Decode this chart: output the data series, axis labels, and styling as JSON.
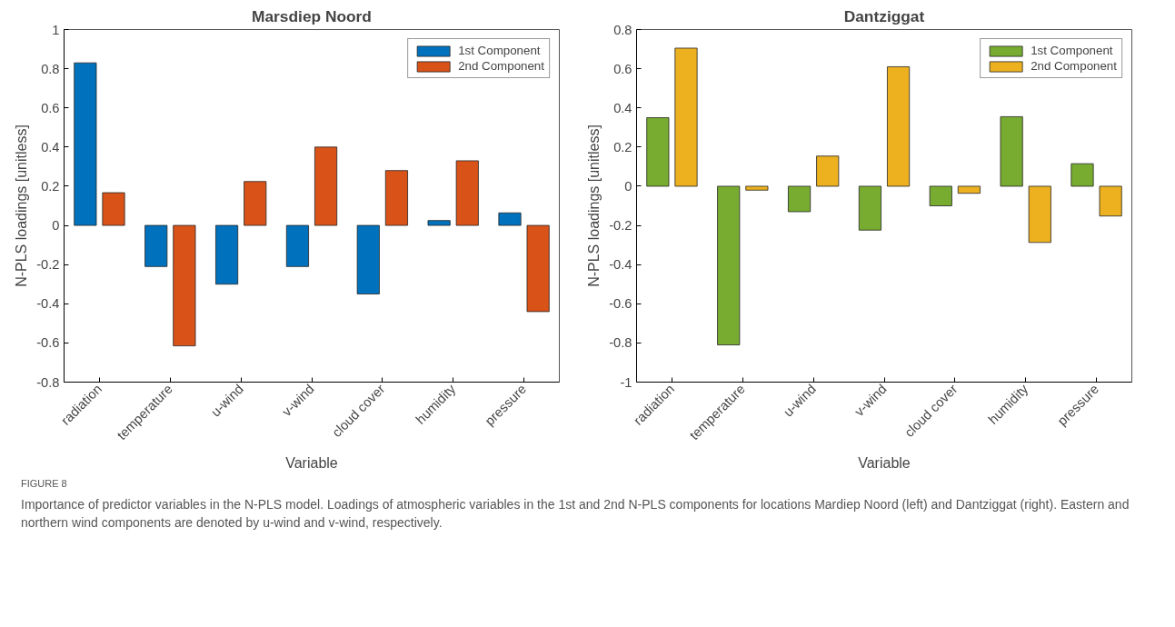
{
  "chart_data": [
    {
      "type": "bar",
      "title": "Marsdiep Noord",
      "xlabel": "Variable",
      "ylabel": "N-PLS loadings [unitless]",
      "categories": [
        "radiation",
        "temperature",
        "u-wind",
        "v-wind",
        "cloud cover",
        "humidity",
        "pressure"
      ],
      "series": [
        {
          "name": "1st Component",
          "color": "#0072bd",
          "values": [
            0.83,
            -0.21,
            -0.3,
            -0.21,
            -0.35,
            0.025,
            0.064
          ]
        },
        {
          "name": "2nd Component",
          "color": "#d95319",
          "values": [
            0.167,
            -0.615,
            0.224,
            0.4,
            0.28,
            0.33,
            -0.44
          ]
        }
      ],
      "ylim": [
        -0.8,
        1
      ],
      "yticks": [
        -0.8,
        -0.6,
        -0.4,
        -0.2,
        0,
        0.2,
        0.4,
        0.6,
        0.8,
        1
      ],
      "grid": false,
      "legend": "top right",
      "annotations": [
        "FIGURE 8",
        "Importance of predictor variables in the N-PLS model. Loadings of atmospheric variables in the 1st and 2nd N-PLS components for locations Mardiep Noord (left) and Dantziggat (right). Eastern and northern wind components are denoted by u-wind and v-wind, respectively."
      ]
    },
    {
      "type": "bar",
      "title": "Dantziggat",
      "xlabel": "Variable",
      "ylabel": "N-PLS loadings [unitless]",
      "categories": [
        "radiation",
        "temperature",
        "u-wind",
        "v-wind",
        "cloud cover",
        "humidity",
        "pressure"
      ],
      "series": [
        {
          "name": "1st Component",
          "color": "#77ac30",
          "values": [
            0.35,
            -0.81,
            -0.13,
            -0.224,
            -0.1,
            0.355,
            0.115
          ]
        },
        {
          "name": "2nd Component",
          "color": "#edb120",
          "values": [
            0.705,
            -0.02,
            0.154,
            0.61,
            -0.036,
            -0.287,
            -0.152
          ]
        }
      ],
      "ylim": [
        -1,
        0.8
      ],
      "yticks": [
        -1,
        -0.8,
        -0.6,
        -0.4,
        -0.2,
        0,
        0.2,
        0.4,
        0.6,
        0.8
      ],
      "grid": false,
      "legend": "top right"
    }
  ]
}
